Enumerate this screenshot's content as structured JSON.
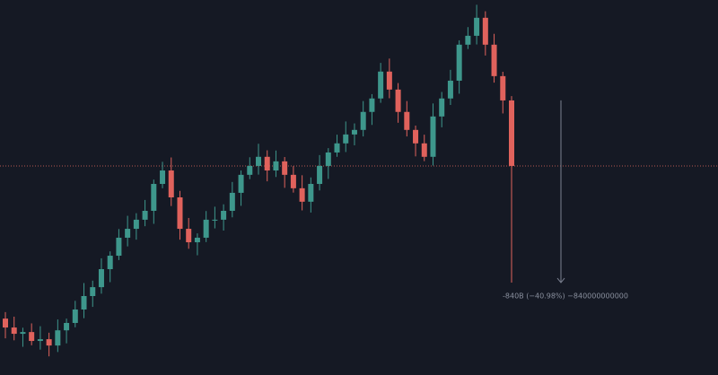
{
  "chart_data": {
    "type": "candlestick",
    "annotation": "-840B (−40.98%) −840000000000",
    "up_color": "#3e978c",
    "down_color": "#e0625c",
    "ylim": [
      784,
      2513
    ],
    "open": [
      1044,
      1003,
      974,
      982,
      941,
      949,
      920,
      990,
      1024,
      1086,
      1148,
      1189,
      1272,
      1334,
      1417,
      1458,
      1500,
      1541,
      1665,
      1727,
      1603,
      1458,
      1396,
      1417,
      1500,
      1500,
      1541,
      1624,
      1707,
      1748,
      1790,
      1727,
      1769,
      1707,
      1645,
      1583,
      1665,
      1748,
      1810,
      1852,
      1893,
      1914,
      1997,
      2059,
      2183,
      2100,
      1997,
      1914,
      1852,
      1790,
      1976,
      2059,
      2141,
      2307,
      2348,
      2431,
      2307,
      2162,
      2050
    ],
    "high": [
      1074,
      1053,
      1002,
      1022,
      1009,
      979,
      1040,
      1044,
      1126,
      1208,
      1219,
      1322,
      1354,
      1457,
      1518,
      1530,
      1591,
      1685,
      1767,
      1787,
      1633,
      1508,
      1437,
      1540,
      1560,
      1571,
      1674,
      1727,
      1788,
      1850,
      1820,
      1819,
      1789,
      1747,
      1705,
      1695,
      1798,
      1830,
      1892,
      1953,
      1944,
      2047,
      2079,
      2223,
      2243,
      2130,
      2047,
      1934,
      1892,
      2036,
      2089,
      2191,
      2327,
      2388,
      2491,
      2461,
      2357,
      2182,
      2070
    ],
    "low": [
      953,
      944,
      914,
      921,
      901,
      870,
      890,
      930,
      1004,
      1046,
      1098,
      1159,
      1212,
      1314,
      1377,
      1408,
      1470,
      1481,
      1645,
      1563,
      1408,
      1366,
      1336,
      1397,
      1460,
      1450,
      1511,
      1564,
      1687,
      1708,
      1677,
      1697,
      1647,
      1625,
      1543,
      1533,
      1635,
      1688,
      1790,
      1812,
      1843,
      1884,
      1937,
      2039,
      2060,
      1947,
      1884,
      1792,
      1770,
      1750,
      1926,
      2029,
      2081,
      2287,
      2308,
      2257,
      2132,
      1990,
      1210
    ],
    "close": [
      1003,
      974,
      982,
      941,
      949,
      920,
      990,
      1024,
      1086,
      1148,
      1189,
      1272,
      1334,
      1417,
      1458,
      1500,
      1541,
      1665,
      1727,
      1603,
      1458,
      1396,
      1417,
      1500,
      1500,
      1541,
      1624,
      1707,
      1748,
      1790,
      1727,
      1769,
      1707,
      1645,
      1583,
      1665,
      1748,
      1810,
      1852,
      1893,
      1914,
      1997,
      2059,
      2183,
      2100,
      1997,
      1914,
      1852,
      1790,
      1976,
      2059,
      2141,
      2307,
      2348,
      2431,
      2307,
      2162,
      2050,
      1748
    ]
  }
}
